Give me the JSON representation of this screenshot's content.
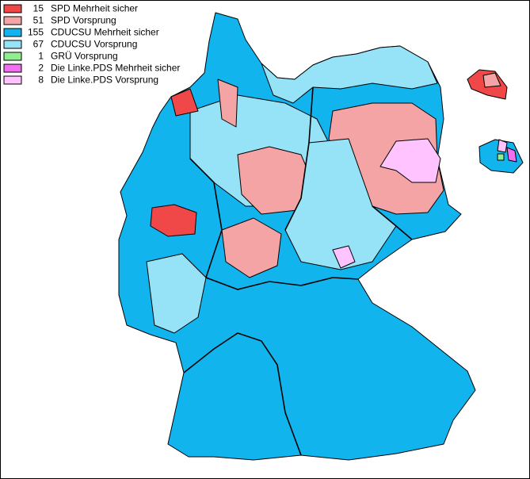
{
  "legend": {
    "items": [
      {
        "count": 15,
        "label": "SPD Mehrheit sicher",
        "color": "#f04848"
      },
      {
        "count": 51,
        "label": "SPD Vorsprung",
        "color": "#f4a4a4"
      },
      {
        "count": 155,
        "label": "CDUCSU Mehrheit sicher",
        "color": "#12b4ee"
      },
      {
        "count": 67,
        "label": "CDUCSU Vorsprung",
        "color": "#96e2f6"
      },
      {
        "count": 1,
        "label": "GRÜ Vorsprung",
        "color": "#90ee90"
      },
      {
        "count": 2,
        "label": "Die Linke.PDS Mehrheit sicher",
        "color": "#f070f0"
      },
      {
        "count": 8,
        "label": "Die Linke.PDS Vorsprung",
        "color": "#ffc4ff"
      }
    ]
  }
}
